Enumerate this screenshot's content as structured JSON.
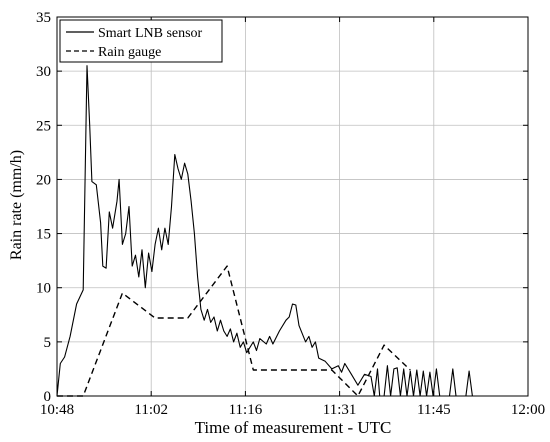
{
  "chart_data": {
    "type": "line",
    "title": "",
    "xlabel": "Time of measurement - UTC",
    "ylabel": "Rain rate (mm/h)",
    "x_unit": "time (HH:MM)",
    "xlim": [
      "10:48",
      "12:00"
    ],
    "ylim": [
      0,
      35
    ],
    "grid": true,
    "legend_position": "top-left",
    "x_ticks": [
      "10:48",
      "11:02",
      "11:16",
      "11:31",
      "11:45",
      "12:00"
    ],
    "y_ticks": [
      "0",
      "5",
      "10",
      "15",
      "20",
      "25",
      "30",
      "35"
    ],
    "series": [
      {
        "name": "Smart LNB sensor",
        "style": "solid",
        "color": "#000000",
        "points": [
          [
            "10:48:00",
            0.0
          ],
          [
            "10:48:30",
            3.0
          ],
          [
            "10:49:10",
            3.6
          ],
          [
            "10:50:00",
            5.5
          ],
          [
            "10:51:00",
            8.5
          ],
          [
            "10:52:00",
            9.8
          ],
          [
            "10:52:35",
            30.5
          ],
          [
            "10:53:00",
            25.0
          ],
          [
            "10:53:20",
            19.8
          ],
          [
            "10:54:00",
            19.5
          ],
          [
            "10:54:40",
            16.0
          ],
          [
            "10:55:00",
            12.0
          ],
          [
            "10:55:30",
            11.8
          ],
          [
            "10:56:00",
            17.0
          ],
          [
            "10:56:30",
            15.5
          ],
          [
            "10:57:10",
            18.0
          ],
          [
            "10:57:30",
            20.0
          ],
          [
            "10:58:00",
            14.0
          ],
          [
            "10:58:30",
            15.0
          ],
          [
            "10:59:00",
            17.5
          ],
          [
            "10:59:30",
            12.0
          ],
          [
            "11:00:00",
            13.0
          ],
          [
            "11:00:30",
            11.0
          ],
          [
            "11:01:00",
            13.5
          ],
          [
            "11:01:30",
            10.0
          ],
          [
            "11:02:00",
            13.2
          ],
          [
            "11:02:30",
            11.5
          ],
          [
            "11:03:00",
            14.0
          ],
          [
            "11:03:30",
            15.5
          ],
          [
            "11:04:00",
            13.5
          ],
          [
            "11:04:30",
            15.5
          ],
          [
            "11:05:00",
            14.0
          ],
          [
            "11:05:30",
            17.5
          ],
          [
            "11:06:00",
            22.3
          ],
          [
            "11:06:30",
            21.0
          ],
          [
            "11:07:00",
            20.0
          ],
          [
            "11:07:30",
            21.5
          ],
          [
            "11:08:00",
            20.5
          ],
          [
            "11:08:30",
            18.0
          ],
          [
            "11:09:00",
            15.0
          ],
          [
            "11:09:30",
            11.0
          ],
          [
            "11:10:00",
            8.0
          ],
          [
            "11:10:30",
            7.0
          ],
          [
            "11:11:00",
            8.0
          ],
          [
            "11:11:30",
            6.8
          ],
          [
            "11:12:00",
            7.3
          ],
          [
            "11:12:30",
            6.0
          ],
          [
            "11:13:00",
            7.0
          ],
          [
            "11:13:30",
            6.0
          ],
          [
            "11:14:00",
            5.5
          ],
          [
            "11:14:30",
            6.2
          ],
          [
            "11:15:00",
            5.0
          ],
          [
            "11:15:30",
            5.8
          ],
          [
            "11:16:00",
            4.5
          ],
          [
            "11:16:30",
            5.0
          ],
          [
            "11:17:00",
            4.0
          ],
          [
            "11:18:00",
            5.0
          ],
          [
            "11:18:30",
            4.2
          ],
          [
            "11:19:00",
            5.3
          ],
          [
            "11:20:00",
            4.8
          ],
          [
            "11:20:30",
            5.5
          ],
          [
            "11:21:00",
            4.8
          ],
          [
            "11:22:00",
            6.0
          ],
          [
            "11:23:00",
            7.0
          ],
          [
            "11:23:30",
            7.3
          ],
          [
            "11:24:00",
            8.5
          ],
          [
            "11:24:30",
            8.4
          ],
          [
            "11:25:00",
            6.5
          ],
          [
            "11:26:00",
            5.0
          ],
          [
            "11:26:30",
            5.5
          ],
          [
            "11:27:00",
            4.5
          ],
          [
            "11:27:30",
            5.0
          ],
          [
            "11:28:00",
            3.5
          ],
          [
            "11:29:00",
            3.2
          ],
          [
            "11:30:00",
            2.5
          ],
          [
            "11:31:00",
            2.8
          ],
          [
            "11:31:30",
            2.2
          ],
          [
            "11:32:00",
            3.0
          ],
          [
            "11:33:00",
            2.0
          ],
          [
            "11:34:00",
            1.0
          ],
          [
            "11:35:00",
            2.0
          ],
          [
            "11:36:00",
            1.8
          ],
          [
            "11:36:30",
            0.0
          ],
          [
            "11:37:00",
            2.5
          ],
          [
            "11:37:20",
            0.0
          ],
          [
            "11:38:00",
            0.0
          ],
          [
            "11:38:30",
            2.8
          ],
          [
            "11:39:00",
            0.0
          ],
          [
            "11:39:30",
            2.5
          ],
          [
            "11:40:00",
            2.6
          ],
          [
            "11:40:30",
            0.0
          ],
          [
            "11:41:00",
            2.5
          ],
          [
            "11:41:30",
            0.0
          ],
          [
            "11:42:00",
            2.3
          ],
          [
            "11:42:30",
            0.0
          ],
          [
            "11:43:00",
            2.4
          ],
          [
            "11:43:30",
            0.0
          ],
          [
            "11:44:00",
            2.3
          ],
          [
            "11:44:30",
            0.0
          ],
          [
            "11:45:00",
            2.2
          ],
          [
            "11:45:30",
            0.0
          ],
          [
            "11:46:00",
            2.5
          ],
          [
            "11:46:30",
            0.0
          ],
          [
            "11:48:00",
            0.0
          ],
          [
            "11:48:30",
            2.5
          ],
          [
            "11:49:00",
            0.0
          ],
          [
            "11:50:30",
            0.0
          ],
          [
            "11:51:00",
            2.3
          ],
          [
            "11:51:30",
            0.0
          ]
        ]
      },
      {
        "name": "Rain gauge",
        "style": "dashed",
        "color": "#000000",
        "points": [
          [
            "10:48:00",
            0.0
          ],
          [
            "10:52:00",
            0.0
          ],
          [
            "10:58:00",
            9.5
          ],
          [
            "11:03:00",
            7.2
          ],
          [
            "11:08:00",
            7.2
          ],
          [
            "11:14:00",
            12.0
          ],
          [
            "11:18:00",
            2.4
          ],
          [
            "11:30:00",
            2.4
          ],
          [
            "11:34:00",
            0.0
          ],
          [
            "11:38:00",
            4.7
          ],
          [
            "11:42:00",
            2.4
          ]
        ]
      }
    ]
  }
}
